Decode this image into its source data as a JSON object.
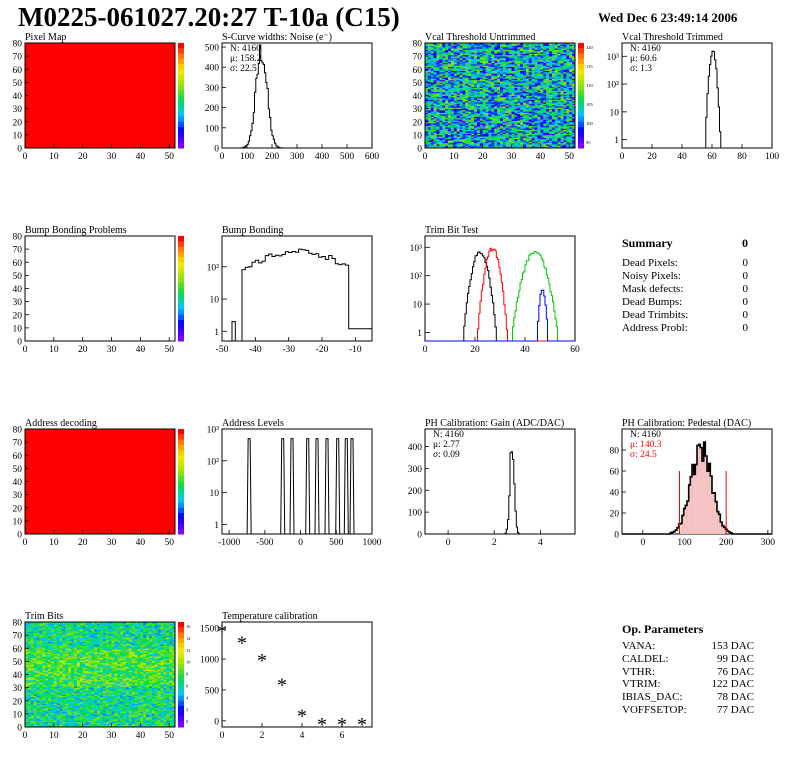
{
  "header": {
    "title": "M0225-061027.20:27 T-10a (C15)",
    "date": "Wed Dec  6 23:49:14 2006"
  },
  "panels": [
    {
      "id": "pixel_map",
      "title": "Pixel Map",
      "type": "map",
      "fill": "solid",
      "color": "#ff0000",
      "xlim": [
        0,
        52
      ],
      "ylim": [
        0,
        80
      ],
      "xticks": [
        "0",
        "10",
        "20",
        "30",
        "40",
        "50"
      ],
      "yticks": [
        "0",
        "10",
        "20",
        "30",
        "40",
        "50",
        "60",
        "70",
        "80"
      ],
      "palette": "rainbow",
      "palette_labels": []
    },
    {
      "id": "scurve",
      "title": "S-Curve widths: Noise (e⁻)",
      "type": "hist",
      "logy": false,
      "xlim": [
        0,
        600
      ],
      "ylim": [
        0,
        520
      ],
      "xticks": [
        "0",
        "100",
        "200",
        "300",
        "400",
        "500",
        "600"
      ],
      "yticks": [
        "0",
        "100",
        "200",
        "300",
        "400",
        "500"
      ],
      "series": [
        {
          "color": "#000000",
          "mean": 158,
          "sigma": 22,
          "peak": 480
        }
      ],
      "stats": [
        "N: 4160",
        "μ: 158.2",
        "σ: 22.5"
      ]
    },
    {
      "id": "vcal_untrimmed",
      "title": "Vcal Threshold Untrimmed",
      "type": "map",
      "fill": "noise_untrimmed",
      "xlim": [
        0,
        52
      ],
      "ylim": [
        0,
        80
      ],
      "xticks": [
        "0",
        "10",
        "20",
        "30",
        "40",
        "50"
      ],
      "yticks": [
        "0",
        "10",
        "20",
        "30",
        "40",
        "50",
        "60",
        "70",
        "80"
      ],
      "palette": "rainbow",
      "palette_labels": [
        "120",
        "115",
        "110",
        "105",
        "100",
        "95"
      ]
    },
    {
      "id": "vcal_trimmed",
      "title": "Vcal Threshold Trimmed",
      "type": "hist",
      "logy": true,
      "xlim": [
        0,
        100
      ],
      "ylim": [
        0.5,
        3000
      ],
      "xticks": [
        "0",
        "20",
        "40",
        "60",
        "80",
        "100"
      ],
      "yticks_log": [
        [
          "1",
          "1"
        ],
        [
          "10",
          "10"
        ],
        [
          "100",
          "10²"
        ],
        [
          "1000",
          "10³"
        ]
      ],
      "series": [
        {
          "color": "#000000",
          "mean": 60.6,
          "sigma": 1.3,
          "peak": 1600
        }
      ],
      "stats": [
        "N: 4160",
        "μ: 60.6",
        "σ:  1.3"
      ]
    },
    {
      "id": "bump_problems",
      "title": "Bump Bonding Problems",
      "type": "map",
      "fill": "empty",
      "xlim": [
        0,
        52
      ],
      "ylim": [
        0,
        80
      ],
      "xticks": [
        "0",
        "10",
        "20",
        "30",
        "40",
        "50"
      ],
      "yticks": [
        "0",
        "10",
        "20",
        "30",
        "40",
        "50",
        "60",
        "70",
        "80"
      ],
      "palette": "rainbow",
      "palette_labels": []
    },
    {
      "id": "bump_bonding",
      "title": "Bump Bonding",
      "type": "bumpbond",
      "logy": true,
      "xlim": [
        -50,
        -5
      ],
      "ylim": [
        0.5,
        900
      ],
      "xticks": [
        "-50",
        "-40",
        "-30",
        "-20",
        "-10"
      ],
      "yticks_log": [
        [
          "1",
          "1"
        ],
        [
          "10",
          "10"
        ],
        [
          "100",
          "10²"
        ]
      ],
      "series": [
        {
          "color": "#000000"
        }
      ],
      "stats": []
    },
    {
      "id": "trim_bit_test",
      "title": "Trim Bit Test",
      "type": "hist",
      "logy": true,
      "xlim": [
        0,
        60
      ],
      "ylim": [
        0.5,
        2500
      ],
      "xticks": [
        "0",
        "20",
        "40",
        "60"
      ],
      "yticks_log": [
        [
          "1",
          "1"
        ],
        [
          "10",
          "10"
        ],
        [
          "100",
          "10²"
        ],
        [
          "1000",
          "10³"
        ]
      ],
      "series": [
        {
          "color": "#000000",
          "mean": 22,
          "sigma": 1.8,
          "peak": 700
        },
        {
          "color": "#ff0000",
          "mean": 27,
          "sigma": 1.6,
          "peak": 900
        },
        {
          "color": "#00cc00",
          "mean": 44,
          "sigma": 2.5,
          "peak": 700
        },
        {
          "color": "#0000ff",
          "mean": 47,
          "sigma": 0.8,
          "peak": 30
        }
      ],
      "stats": []
    },
    {
      "id": "address_decoding",
      "title": "Address decoding",
      "type": "map",
      "fill": "solid",
      "color": "#ff0000",
      "xlim": [
        0,
        52
      ],
      "ylim": [
        0,
        80
      ],
      "xticks": [
        "0",
        "10",
        "20",
        "30",
        "40",
        "50"
      ],
      "yticks": [
        "0",
        "10",
        "20",
        "30",
        "40",
        "50",
        "60",
        "70",
        "80"
      ],
      "palette": "rainbow",
      "palette_labels": []
    },
    {
      "id": "address_levels",
      "title": "Address Levels",
      "type": "spikes",
      "logy": true,
      "xlim": [
        -1100,
        1000
      ],
      "ylim": [
        0.5,
        1000
      ],
      "xticks": [
        "-1000",
        "-500",
        "0",
        "500",
        "1000"
      ],
      "yticks_log": [
        [
          "1",
          "1"
        ],
        [
          "10",
          "10"
        ],
        [
          "100",
          "10²"
        ],
        [
          "1000",
          "10³"
        ]
      ],
      "spikes": [
        -720,
        -250,
        -120,
        100,
        230,
        370,
        520,
        640,
        720
      ],
      "stats": []
    },
    {
      "id": "ph_gain",
      "title": "PH Calibration: Gain (ADC/DAC)",
      "type": "hist",
      "logy": false,
      "xlim": [
        -1,
        5.5
      ],
      "ylim": [
        0,
        480
      ],
      "xticks": [
        "0",
        "2",
        "4"
      ],
      "yticks": [
        "0",
        "100",
        "200",
        "300",
        "400"
      ],
      "series": [
        {
          "color": "#000000",
          "mean": 2.77,
          "sigma": 0.09,
          "peak": 440
        }
      ],
      "stats": [
        "N: 4160",
        "μ: 2.77",
        "σ: 0.09"
      ]
    },
    {
      "id": "ph_pedestal",
      "title": "PH Calibration: Pedestal (DAC)",
      "type": "pedestal",
      "logy": false,
      "xlim": [
        -50,
        310
      ],
      "ylim": [
        0,
        100
      ],
      "xticks": [
        "0",
        "100",
        "200",
        "300"
      ],
      "yticks": [
        "0",
        "20",
        "40",
        "60",
        "80"
      ],
      "series": [
        {
          "color": "#000000",
          "mean": 140.3,
          "sigma": 24.5,
          "peak": 82
        }
      ],
      "cut_lines": [
        88,
        200
      ],
      "stats": [
        "N: 4160",
        "μ: 140.3",
        "σ: 24.5"
      ],
      "stats_colors": [
        "#000000",
        "#ff0000",
        "#ff0000"
      ]
    },
    {
      "id": "trim_bits",
      "title": "Trim Bits",
      "type": "map",
      "fill": "noise_trim",
      "xlim": [
        0,
        52
      ],
      "ylim": [
        0,
        80
      ],
      "xticks": [
        "0",
        "10",
        "20",
        "30",
        "40",
        "50"
      ],
      "yticks": [
        "0",
        "10",
        "20",
        "30",
        "40",
        "50",
        "60",
        "70",
        "80"
      ],
      "palette": "rainbow",
      "palette_labels": [
        "16",
        "14",
        "12",
        "10",
        "8",
        "6",
        "4",
        "2",
        "0"
      ]
    },
    {
      "id": "temp_cal",
      "title": "Temperature calibration",
      "type": "markers",
      "logy": false,
      "xlim": [
        0,
        7.5
      ],
      "ylim": [
        -100,
        1600
      ],
      "xticks": [
        "0",
        "2",
        "4",
        "6"
      ],
      "yticks": [
        "0",
        "500",
        "1000",
        "1500"
      ],
      "points": [
        [
          0,
          1490
        ],
        [
          1,
          1300
        ],
        [
          2,
          1020
        ],
        [
          3,
          620
        ],
        [
          4,
          120
        ],
        [
          5,
          -20
        ],
        [
          6,
          -20
        ],
        [
          7,
          -20
        ]
      ],
      "stats": []
    }
  ],
  "summary": {
    "title": "Summary",
    "total": "0",
    "rows": [
      {
        "label": "Dead Pixels:",
        "value": "0"
      },
      {
        "label": "Noisy Pixels:",
        "value": "0"
      },
      {
        "label": "Mask defects:",
        "value": "0"
      },
      {
        "label": "Dead Bumps:",
        "value": "0"
      },
      {
        "label": "Dead Trimbits:",
        "value": "0"
      },
      {
        "label": "Address Probl:",
        "value": "0"
      }
    ]
  },
  "op_params": {
    "title": "Op. Parameters",
    "rows": [
      {
        "label": "VANA:",
        "value": "153 DAC"
      },
      {
        "label": "CALDEL:",
        "value": "99 DAC"
      },
      {
        "label": "VTHR:",
        "value": "76 DAC"
      },
      {
        "label": "VTRIM:",
        "value": "122 DAC"
      },
      {
        "label": "IBIAS_DAC:",
        "value": "78 DAC"
      },
      {
        "label": "VOFFSETOP:",
        "value": "77 DAC"
      }
    ]
  },
  "chart_data": [
    {
      "type": "heatmap",
      "title": "Pixel Map",
      "xlim": [
        0,
        52
      ],
      "ylim": [
        0,
        80
      ],
      "note_value": "uniform red"
    },
    {
      "type": "bar",
      "title": "S-Curve widths: Noise (e⁻)",
      "xlim": [
        0,
        600
      ],
      "ylim": [
        0,
        520
      ],
      "N": 4160,
      "mean": 158.2,
      "sigma": 22.5
    },
    {
      "type": "heatmap",
      "title": "Vcal Threshold Untrimmed",
      "xlim": [
        0,
        52
      ],
      "ylim": [
        0,
        80
      ],
      "z_ticks": [
        95,
        100,
        105,
        110,
        115,
        120
      ]
    },
    {
      "type": "bar",
      "title": "Vcal Threshold Trimmed",
      "xlim": [
        0,
        100
      ],
      "log_y": true,
      "N": 4160,
      "mean": 60.6,
      "sigma": 1.3
    },
    {
      "type": "heatmap",
      "title": "Bump Bonding Problems",
      "xlim": [
        0,
        52
      ],
      "ylim": [
        0,
        80
      ]
    },
    {
      "type": "bar",
      "title": "Bump Bonding",
      "xlim": [
        -50,
        -5
      ],
      "log_y": true
    },
    {
      "type": "bar",
      "title": "Trim Bit Test",
      "xlim": [
        0,
        60
      ],
      "log_y": true
    },
    {
      "type": "heatmap",
      "title": "Address decoding",
      "xlim": [
        0,
        52
      ],
      "ylim": [
        0,
        80
      ]
    },
    {
      "type": "bar",
      "title": "Address Levels",
      "xlim": [
        -1100,
        1000
      ],
      "log_y": true
    },
    {
      "type": "bar",
      "title": "PH Calibration: Gain (ADC/DAC)",
      "N": 4160,
      "mean": 2.77,
      "sigma": 0.09
    },
    {
      "type": "bar",
      "title": "PH Calibration: Pedestal (DAC)",
      "N": 4160,
      "mean": 140.3,
      "sigma": 24.5
    },
    {
      "type": "heatmap",
      "title": "Trim Bits",
      "xlim": [
        0,
        52
      ],
      "ylim": [
        0,
        80
      ],
      "z_ticks": [
        0,
        2,
        4,
        6,
        8,
        10,
        12,
        14,
        16
      ]
    },
    {
      "type": "scatter",
      "title": "Temperature calibration",
      "x": [
        0,
        1,
        2,
        3,
        4,
        5,
        6,
        7
      ],
      "y": [
        1490,
        1300,
        1020,
        620,
        120,
        -20,
        -20,
        -20
      ]
    }
  ]
}
